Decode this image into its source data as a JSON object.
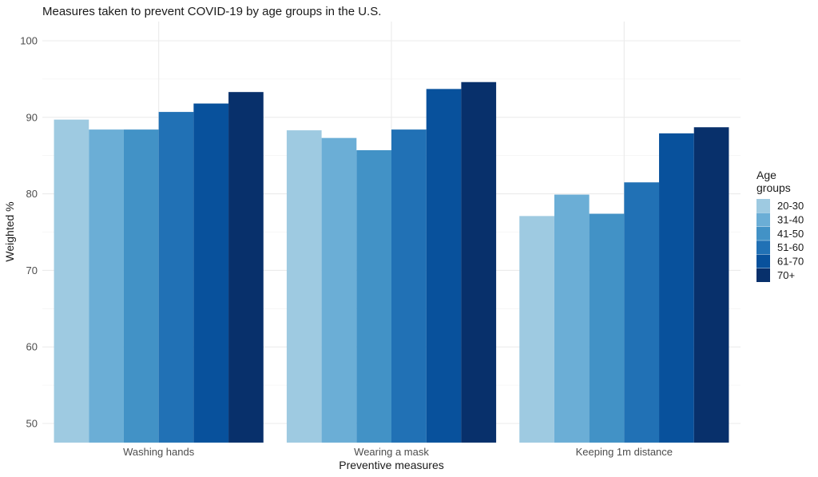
{
  "chart_data": {
    "type": "bar",
    "title": "Measures taken to prevent COVID-19 by age groups in the U.S.",
    "xlabel": "Preventive measures",
    "ylabel": "Weighted %",
    "categories": [
      "Washing hands",
      "Wearing a mask",
      "Keeping 1m distance"
    ],
    "ylim": [
      47.5,
      102.5
    ],
    "yticks": [
      50,
      60,
      70,
      80,
      90,
      100
    ],
    "grid": true,
    "legend": {
      "title_lines": [
        "Age",
        "groups"
      ],
      "placement": "right"
    },
    "series": [
      {
        "name": "20-30",
        "color": "#9ecae1",
        "values": [
          89.7,
          88.3,
          77.1
        ]
      },
      {
        "name": "31-40",
        "color": "#6baed6",
        "values": [
          88.4,
          87.3,
          79.9
        ]
      },
      {
        "name": "41-50",
        "color": "#4292c6",
        "values": [
          88.4,
          85.7,
          77.4
        ]
      },
      {
        "name": "51-60",
        "color": "#2171b5",
        "values": [
          90.7,
          88.4,
          81.5
        ]
      },
      {
        "name": "61-70",
        "color": "#08519c",
        "values": [
          91.8,
          93.7,
          87.9
        ]
      },
      {
        "name": "70+",
        "color": "#08306b",
        "values": [
          93.3,
          94.6,
          88.7
        ]
      }
    ]
  }
}
